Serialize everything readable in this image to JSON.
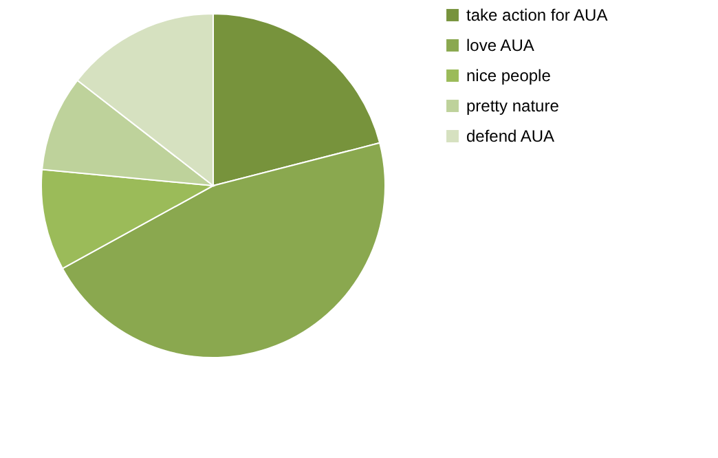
{
  "chart_data": {
    "type": "pie",
    "categories": [
      "take action for AUA",
      "love AUA",
      "nice people",
      "pretty nature",
      "defend AUA"
    ],
    "values": [
      21,
      46,
      9.5,
      9,
      14.5
    ],
    "colors": [
      "#77933c",
      "#8aa84f",
      "#9bbb59",
      "#bed29b",
      "#d6e1c0"
    ],
    "legend": "right"
  }
}
